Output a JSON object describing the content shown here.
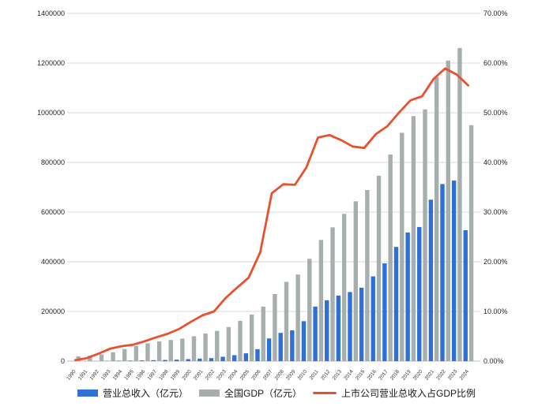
{
  "chart_data": {
    "type": "bar",
    "subtype": "combo-bar-line",
    "title": "",
    "xlabel": "",
    "ylabel": "",
    "grid": true,
    "legend_position": "bottom",
    "years": [
      "1990",
      "1991",
      "1992",
      "1993",
      "1994",
      "1995",
      "1996",
      "1997",
      "1998",
      "1999",
      "2000",
      "2001",
      "2002",
      "2003",
      "2004",
      "2005",
      "2006",
      "2007",
      "2008",
      "2009",
      "2010",
      "2011",
      "2012",
      "2013",
      "2014",
      "2015",
      "2016",
      "2017",
      "2018",
      "2019",
      "2020",
      "2021",
      "2022",
      "2023",
      "2024"
    ],
    "series": [
      {
        "name": "营业总收入（亿元）",
        "type": "bar",
        "axis": "left",
        "color": "#2E6FD8",
        "values": [
          40,
          130,
          410,
          890,
          1460,
          2020,
          2870,
          3830,
          4690,
          5890,
          7920,
          10200,
          12170,
          17450,
          23950,
          31470,
          48000,
          91290,
          113650,
          123720,
          160730,
          219570,
          245050,
          263870,
          278020,
          295520,
          341100,
          393550,
          459640,
          517920,
          540000,
          650000,
          713000,
          727000,
          527000
        ]
      },
      {
        "name": "全国GDP（亿元）",
        "type": "bar",
        "axis": "left",
        "color": "#A7AEAE",
        "values": [
          18873,
          22006,
          27195,
          35674,
          48638,
          61340,
          71814,
          79715,
          85196,
          90564,
          100280,
          110863,
          121717,
          137422,
          161840,
          187319,
          219439,
          270092,
          319245,
          348518,
          412119,
          487940,
          538580,
          592963,
          643563,
          688858,
          746395,
          832036,
          919281,
          986515,
          1013567,
          1143670,
          1210207,
          1260582,
          949746
        ]
      },
      {
        "name": "上市公司营业总收入占GDP比例",
        "type": "line",
        "axis": "right",
        "color": "#E8512D",
        "values": [
          0.2,
          0.6,
          1.5,
          2.5,
          3.0,
          3.3,
          4.0,
          4.8,
          5.5,
          6.5,
          7.9,
          9.2,
          10.0,
          12.7,
          14.8,
          16.8,
          21.9,
          33.8,
          35.6,
          35.5,
          39.0,
          45.0,
          45.5,
          44.5,
          43.2,
          42.9,
          45.7,
          47.3,
          50.0,
          52.5,
          53.3,
          56.8,
          58.9,
          57.7,
          55.5
        ]
      }
    ],
    "left_axis": {
      "min": 0,
      "max": 1400000,
      "step": 200000,
      "tick_labels": [
        "0",
        "200000",
        "400000",
        "600000",
        "800000",
        "1000000",
        "1200000",
        "1400000"
      ]
    },
    "right_axis": {
      "min": 0,
      "max": 70,
      "step": 10,
      "tick_labels": [
        "0.00%",
        "10.00%",
        "20.00%",
        "30.00%",
        "40.00%",
        "50.00%",
        "60.00%",
        "70.00%"
      ]
    },
    "colors": {
      "gridline": "#D9D9D9",
      "axis_line": "#BFBFBF",
      "tick_text": "#262626"
    }
  },
  "legend": {
    "items": [
      {
        "label": "营业总收入（亿元）",
        "color": "#2E6FD8",
        "kind": "bar"
      },
      {
        "label": "全国GDP（亿元）",
        "color": "#A7AEAE",
        "kind": "bar"
      },
      {
        "label": "上市公司营业总收入占GDP比例",
        "color": "#E8512D",
        "kind": "line"
      }
    ]
  }
}
